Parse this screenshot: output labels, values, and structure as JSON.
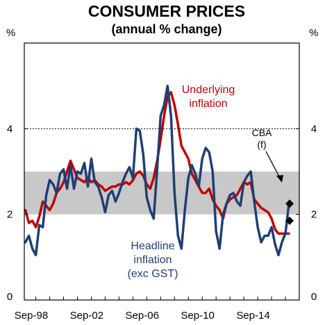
{
  "chart_data": {
    "type": "line",
    "title": "CONSUMER PRICES",
    "subtitle": "(annual % change)",
    "y_unit_left": "%",
    "y_unit_right": "%",
    "ylim": [
      0,
      6
    ],
    "y_ticks": [
      {
        "value": 0,
        "label": "0"
      },
      {
        "value": 2,
        "label": "2"
      },
      {
        "value": 4,
        "label": "4"
      }
    ],
    "xlim": [
      1998.17,
      2018.0
    ],
    "x_ticks": [
      {
        "value": 1998.67,
        "label": "Sep-98"
      },
      {
        "value": 2002.67,
        "label": "Sep-02"
      },
      {
        "value": 2006.67,
        "label": "Sep-06"
      },
      {
        "value": 2010.67,
        "label": "Sep-10"
      },
      {
        "value": 2014.67,
        "label": "Sep-14"
      }
    ],
    "target_band": [
      2,
      3
    ],
    "reference_line": 4,
    "grid": false,
    "legend": "none",
    "series": [
      {
        "name": "Underlying inflation",
        "color": "#c00000",
        "points": [
          [
            1998.25,
            2.1
          ],
          [
            1998.5,
            1.8
          ],
          [
            1998.75,
            1.85
          ],
          [
            1999.0,
            1.7
          ],
          [
            1999.25,
            1.95
          ],
          [
            1999.5,
            2.3
          ],
          [
            1999.75,
            2.2
          ],
          [
            2000.0,
            2.1
          ],
          [
            2000.25,
            2.25
          ],
          [
            2000.5,
            2.5
          ],
          [
            2000.75,
            2.6
          ],
          [
            2001.0,
            2.75
          ],
          [
            2001.25,
            3.0
          ],
          [
            2001.5,
            3.25
          ],
          [
            2001.75,
            3.05
          ],
          [
            2002.0,
            2.85
          ],
          [
            2002.25,
            2.8
          ],
          [
            2002.5,
            2.75
          ],
          [
            2002.75,
            2.85
          ],
          [
            2003.0,
            2.75
          ],
          [
            2003.25,
            2.8
          ],
          [
            2003.5,
            2.7
          ],
          [
            2003.75,
            2.65
          ],
          [
            2004.0,
            2.55
          ],
          [
            2004.25,
            2.6
          ],
          [
            2004.5,
            2.65
          ],
          [
            2004.75,
            2.65
          ],
          [
            2005.0,
            2.7
          ],
          [
            2005.25,
            2.7
          ],
          [
            2005.5,
            2.75
          ],
          [
            2005.75,
            2.7
          ],
          [
            2006.0,
            2.8
          ],
          [
            2006.25,
            2.95
          ],
          [
            2006.5,
            3.0
          ],
          [
            2006.75,
            2.9
          ],
          [
            2007.0,
            2.7
          ],
          [
            2007.25,
            2.6
          ],
          [
            2007.5,
            2.85
          ],
          [
            2007.75,
            3.25
          ],
          [
            2008.0,
            3.75
          ],
          [
            2008.25,
            4.3
          ],
          [
            2008.5,
            4.75
          ],
          [
            2008.75,
            4.85
          ],
          [
            2009.0,
            4.55
          ],
          [
            2009.25,
            4.1
          ],
          [
            2009.5,
            3.6
          ],
          [
            2009.75,
            3.45
          ],
          [
            2010.0,
            3.3
          ],
          [
            2010.25,
            2.95
          ],
          [
            2010.5,
            2.8
          ],
          [
            2010.75,
            2.65
          ],
          [
            2011.0,
            2.5
          ],
          [
            2011.25,
            2.5
          ],
          [
            2011.5,
            2.6
          ],
          [
            2011.75,
            2.35
          ],
          [
            2012.0,
            2.2
          ],
          [
            2012.25,
            2.1
          ],
          [
            2012.5,
            1.9
          ],
          [
            2012.75,
            2.25
          ],
          [
            2013.0,
            2.35
          ],
          [
            2013.25,
            2.4
          ],
          [
            2013.5,
            2.45
          ],
          [
            2013.75,
            2.6
          ],
          [
            2014.0,
            2.75
          ],
          [
            2014.25,
            2.7
          ],
          [
            2014.5,
            2.75
          ],
          [
            2014.75,
            2.35
          ],
          [
            2015.0,
            2.25
          ],
          [
            2015.25,
            2.15
          ],
          [
            2015.5,
            2.1
          ],
          [
            2015.75,
            2.05
          ],
          [
            2016.0,
            1.9
          ],
          [
            2016.25,
            1.65
          ],
          [
            2016.5,
            1.55
          ],
          [
            2016.75,
            1.55
          ],
          [
            2017.0,
            1.55
          ],
          [
            2017.25,
            1.55
          ]
        ]
      },
      {
        "name": "Headline inflation (exc GST)",
        "color": "#1f3f73",
        "points": [
          [
            1998.25,
            1.35
          ],
          [
            1998.5,
            1.5
          ],
          [
            1998.75,
            1.2
          ],
          [
            1999.0,
            1.05
          ],
          [
            1999.25,
            1.75
          ],
          [
            1999.5,
            1.7
          ],
          [
            1999.75,
            2.45
          ],
          [
            2000.0,
            2.8
          ],
          [
            2000.25,
            2.7
          ],
          [
            2000.5,
            2.5
          ],
          [
            2000.75,
            2.95
          ],
          [
            2001.0,
            3.05
          ],
          [
            2001.25,
            2.6
          ],
          [
            2001.5,
            3.15
          ],
          [
            2001.75,
            2.6
          ],
          [
            2002.0,
            3.0
          ],
          [
            2002.25,
            2.95
          ],
          [
            2002.5,
            3.2
          ],
          [
            2002.75,
            2.65
          ],
          [
            2003.0,
            3.3
          ],
          [
            2003.25,
            2.75
          ],
          [
            2003.5,
            2.65
          ],
          [
            2003.75,
            2.4
          ],
          [
            2004.0,
            2.05
          ],
          [
            2004.25,
            2.45
          ],
          [
            2004.5,
            2.55
          ],
          [
            2004.75,
            2.3
          ],
          [
            2005.0,
            2.5
          ],
          [
            2005.25,
            2.75
          ],
          [
            2005.5,
            2.95
          ],
          [
            2005.75,
            3.1
          ],
          [
            2006.0,
            2.85
          ],
          [
            2006.25,
            4.0
          ],
          [
            2006.5,
            3.95
          ],
          [
            2006.75,
            3.4
          ],
          [
            2007.0,
            2.4
          ],
          [
            2007.25,
            2.1
          ],
          [
            2007.5,
            1.9
          ],
          [
            2007.75,
            3.05
          ],
          [
            2008.0,
            4.3
          ],
          [
            2008.25,
            4.55
          ],
          [
            2008.5,
            5.0
          ],
          [
            2008.75,
            4.3
          ],
          [
            2009.0,
            2.5
          ],
          [
            2009.25,
            1.5
          ],
          [
            2009.5,
            1.2
          ],
          [
            2009.75,
            2.1
          ],
          [
            2010.0,
            2.85
          ],
          [
            2010.25,
            3.15
          ],
          [
            2010.5,
            2.95
          ],
          [
            2010.75,
            2.65
          ],
          [
            2011.0,
            3.3
          ],
          [
            2011.25,
            3.55
          ],
          [
            2011.5,
            3.45
          ],
          [
            2011.75,
            3.0
          ],
          [
            2012.0,
            1.6
          ],
          [
            2012.25,
            1.2
          ],
          [
            2012.5,
            2.0
          ],
          [
            2012.75,
            2.25
          ],
          [
            2013.0,
            2.45
          ],
          [
            2013.25,
            2.5
          ],
          [
            2013.5,
            2.3
          ],
          [
            2013.75,
            2.2
          ],
          [
            2014.0,
            2.75
          ],
          [
            2014.25,
            2.9
          ],
          [
            2014.5,
            3.0
          ],
          [
            2014.75,
            2.3
          ],
          [
            2015.0,
            1.7
          ],
          [
            2015.25,
            1.35
          ],
          [
            2015.5,
            1.5
          ],
          [
            2015.75,
            1.5
          ],
          [
            2016.0,
            1.7
          ],
          [
            2016.25,
            1.3
          ],
          [
            2016.5,
            1.05
          ],
          [
            2016.75,
            1.35
          ],
          [
            2017.0,
            1.55
          ],
          [
            2017.25,
            2.25
          ]
        ]
      }
    ],
    "forecast_markers": [
      {
        "x": 2017.3,
        "y": 2.25
      },
      {
        "x": 2017.3,
        "y": 1.85
      }
    ],
    "annotations": {
      "underlying_line1": "Underlying",
      "underlying_line2": "inflation",
      "headline_line1": "Headline",
      "headline_line2": "inflation",
      "headline_line3": "(exc GST)",
      "cba_line1": "CBA",
      "cba_line2": "(f)"
    },
    "colors": {
      "band": "#c8c8c8",
      "axis": "#000000",
      "reference_line": "#000000"
    }
  }
}
